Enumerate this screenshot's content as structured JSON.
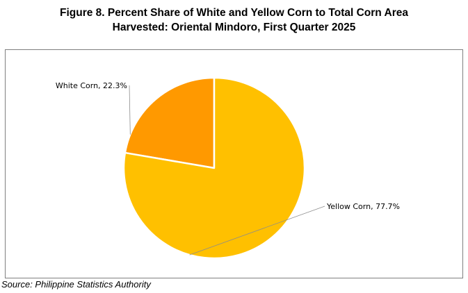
{
  "chart_data": {
    "type": "pie",
    "title_line1": "Figure 8. Percent Share of White and Yellow Corn to Total Corn Area",
    "title_line2": "Harvested: Oriental Mindoro, First Quarter 2025",
    "slices": [
      {
        "label": "White Corn, 22.3%",
        "category": "White Corn",
        "value": 22.3,
        "color": "#ff9900"
      },
      {
        "label": "Yellow Corn, 77.7%",
        "category": "Yellow Corn",
        "value": 77.7,
        "color": "#ffc000"
      }
    ],
    "legend": "none",
    "source": "Source: Philippine Statistics Authority"
  }
}
